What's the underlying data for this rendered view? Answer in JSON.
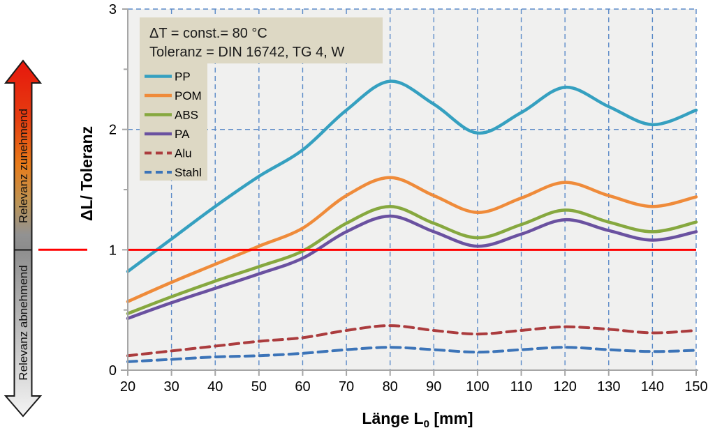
{
  "arrow": {
    "top_label": "Relevanz zunehmend",
    "bottom_label": "Relevanz abnehmend",
    "colors": {
      "top": "#e6170d",
      "mid": "#e87c1a",
      "gray": "#8c8c8c",
      "bottom": "#f4f4f4"
    }
  },
  "annotation": {
    "line1": "ΔT = const.= 80 °C",
    "line2": "Toleranz = DIN 16742, TG 4, W",
    "bg": "#ddd8c4"
  },
  "chart_data": {
    "type": "line",
    "x": [
      20,
      30,
      40,
      50,
      60,
      70,
      80,
      90,
      100,
      110,
      120,
      130,
      140,
      150
    ],
    "xlabel": "Länge L0 [mm]",
    "xlabel_parts": {
      "pre": "Länge L",
      "sub": "0",
      "post": " [mm]"
    },
    "ylabel": "ΔL/ Toleranz",
    "xlim": [
      20,
      150
    ],
    "ylim": [
      0,
      3
    ],
    "y_ticks": [
      0,
      1,
      2,
      3
    ],
    "y_minor_ticks": [
      0.5,
      1.5,
      2.5
    ],
    "grid": {
      "show": true,
      "color": "#5b8ac8",
      "style": "dashed"
    },
    "plot_bg": "#f0f0ef",
    "axis_color": "#a6a6a6",
    "legend_position": "top-left",
    "reference_line": {
      "value": 1,
      "color": "#ff0000",
      "style": "solid"
    },
    "series": [
      {
        "name": "PP",
        "color": "#35a0c0",
        "line_style": "solid",
        "values": [
          0.82,
          1.09,
          1.36,
          1.61,
          1.83,
          2.16,
          2.4,
          2.21,
          1.97,
          2.14,
          2.35,
          2.19,
          2.04,
          2.16
        ]
      },
      {
        "name": "POM",
        "color": "#ef8b3a",
        "line_style": "solid",
        "values": [
          0.57,
          0.73,
          0.88,
          1.03,
          1.18,
          1.45,
          1.6,
          1.45,
          1.31,
          1.43,
          1.56,
          1.45,
          1.36,
          1.44
        ]
      },
      {
        "name": "ABS",
        "color": "#86a83f",
        "line_style": "solid",
        "values": [
          0.47,
          0.61,
          0.74,
          0.86,
          0.99,
          1.22,
          1.36,
          1.22,
          1.1,
          1.21,
          1.33,
          1.23,
          1.15,
          1.23
        ]
      },
      {
        "name": "PA",
        "color": "#6a51a0",
        "line_style": "solid",
        "values": [
          0.43,
          0.56,
          0.68,
          0.8,
          0.93,
          1.15,
          1.28,
          1.15,
          1.03,
          1.13,
          1.25,
          1.16,
          1.08,
          1.15
        ]
      },
      {
        "name": "Alu",
        "color": "#ab3c3e",
        "line_style": "dashed",
        "values": [
          0.12,
          0.16,
          0.2,
          0.24,
          0.27,
          0.33,
          0.37,
          0.33,
          0.3,
          0.33,
          0.36,
          0.34,
          0.31,
          0.33
        ]
      },
      {
        "name": "Stahl",
        "color": "#3c74b8",
        "line_style": "dashed",
        "values": [
          0.07,
          0.09,
          0.11,
          0.12,
          0.14,
          0.17,
          0.19,
          0.17,
          0.15,
          0.17,
          0.19,
          0.17,
          0.155,
          0.165
        ]
      }
    ]
  }
}
